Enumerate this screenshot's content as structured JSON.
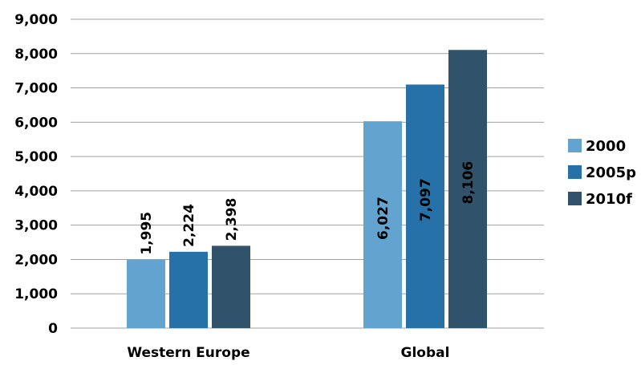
{
  "chart_data": {
    "type": "bar",
    "categories": [
      "Western Europe",
      "Global"
    ],
    "series": [
      {
        "name": "2000",
        "color": "#62a3cf",
        "values": [
          1995,
          6027
        ],
        "labels": [
          "1,995",
          "6,027"
        ]
      },
      {
        "name": "2005p",
        "color": "#2571a8",
        "values": [
          2224,
          7097
        ],
        "labels": [
          "2,224",
          "7,097"
        ]
      },
      {
        "name": "2010f",
        "color": "#30526a",
        "values": [
          2398,
          8106
        ],
        "labels": [
          "2,398",
          "8,106"
        ]
      }
    ],
    "yticks": [
      0,
      1000,
      2000,
      3000,
      4000,
      5000,
      6000,
      7000,
      8000,
      9000
    ],
    "ytick_labels": [
      "0",
      "1,000",
      "2,000",
      "3,000",
      "4,000",
      "5,000",
      "6,000",
      "7,000",
      "8,000",
      "9,000"
    ],
    "ylim": [
      0,
      9000
    ],
    "grid": true,
    "legend_position": "right",
    "title": "",
    "xlabel": "",
    "ylabel": ""
  }
}
